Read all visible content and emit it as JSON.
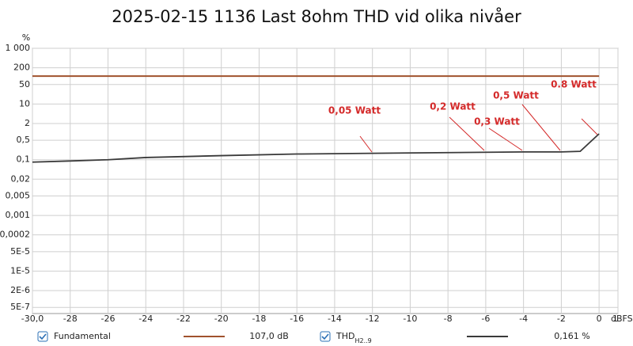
{
  "chart_data": {
    "type": "line",
    "title": "2025-02-15 1136 Last 8ohm THD vid olika nivåer",
    "x_label": "dBFS",
    "y_label": "%",
    "log_y": true,
    "grid": true,
    "x": [
      -30,
      -28,
      -26,
      -24,
      -20,
      -16,
      -12,
      -8,
      -4,
      -2,
      -1,
      0
    ],
    "series": [
      {
        "name": "Fundamental",
        "color": "#a0522d",
        "readout": "107,0 dB",
        "values": [
          100,
          100,
          100,
          100,
          100,
          100,
          100,
          100,
          100,
          100,
          100,
          100
        ]
      },
      {
        "name": "THD",
        "name_sub": "H2..9",
        "color": "#3a3a3a",
        "readout": "0,161 %",
        "values": [
          0.082,
          0.09,
          0.1,
          0.12,
          0.14,
          0.16,
          0.17,
          0.18,
          0.19,
          0.19,
          0.2,
          0.85
        ]
      }
    ],
    "annotations": [
      "0,05 Watt",
      "0,2 Watt",
      "0,3 Watt",
      "0,5 Watt",
      "0.8 Watt"
    ],
    "xlim": [
      -30,
      1
    ],
    "xticks": [
      {
        "value": -30,
        "label": "-30,0"
      },
      -28,
      -26,
      -24,
      -22,
      -20,
      -18,
      -16,
      -14,
      -12,
      -10,
      -8,
      -6,
      -4,
      -2,
      0,
      1
    ],
    "ylim": [
      3e-07,
      1000
    ],
    "yticks": [
      {
        "value": 1000,
        "label": "1 000"
      },
      200,
      50,
      10,
      2,
      {
        "value": 0.5,
        "label": "0,5"
      },
      {
        "value": 0.1,
        "label": "0,1"
      },
      {
        "value": 0.02,
        "label": "0,02"
      },
      {
        "value": 0.005,
        "label": "0,005"
      },
      {
        "value": 0.001,
        "label": "0,001"
      },
      {
        "value": 0.0002,
        "label": "0,0002"
      },
      {
        "value": 5e-05,
        "label": "5E-5"
      },
      {
        "value": 1e-05,
        "label": "1E-5"
      },
      {
        "value": 2e-06,
        "label": "2E-6"
      },
      {
        "value": 5e-07,
        "label": "5E-7"
      }
    ]
  }
}
